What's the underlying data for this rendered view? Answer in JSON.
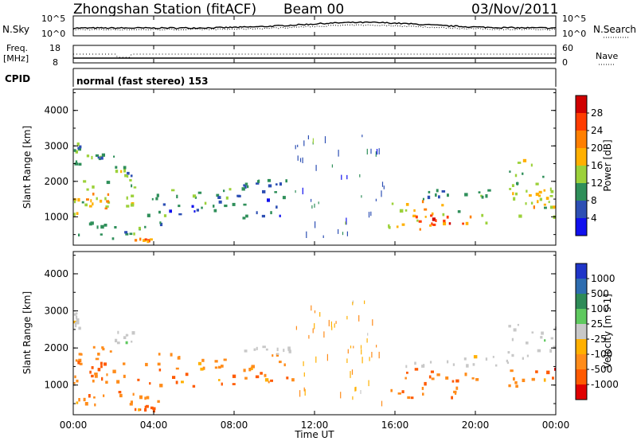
{
  "header": {
    "station": "Zhongshan Station (fitACF)",
    "beam": "Beam 00",
    "date": "03/Nov/2011"
  },
  "status_panels": {
    "nsky_label": "N.Sky",
    "nsky_ticks": [
      "10^5",
      "10^0"
    ],
    "nsearch_label": "N.Search",
    "nsearch_ticks": [
      "10^5",
      "10^0"
    ],
    "freq_label": "Freq.",
    "freq_unit": "[MHz]",
    "freq_ticks": [
      "18",
      "8"
    ],
    "nave_label": "Nave",
    "nave_ticks": [
      "60",
      "0"
    ],
    "cpid_label": "CPID",
    "cpid_value": "normal (fast stereo) 153"
  },
  "x_axis": {
    "label": "Time UT",
    "ticks": [
      "00:00",
      "04:00",
      "08:00",
      "12:00",
      "16:00",
      "20:00",
      "00:00"
    ]
  },
  "chart_data": [
    {
      "type": "heatmap",
      "panel": "power",
      "ylabel": "Slant Range [km]",
      "yticks": [
        1000,
        2000,
        3000,
        4000
      ],
      "ylim": [
        200,
        4600
      ],
      "xlim": [
        0,
        24
      ],
      "colorbar_label": "Power [dB]",
      "colorbar_ticks": [
        "28",
        "24",
        "20",
        "16",
        "12",
        "8",
        "4"
      ],
      "colorbar_colors": [
        "#d00000",
        "#ff3c00",
        "#ff7f00",
        "#ffb000",
        "#9cd13a",
        "#2f8f5a",
        "#2d4fb4",
        "#1010ee"
      ],
      "regions": [
        {
          "t0": 0.0,
          "t1": 3.0,
          "r0": 1000,
          "r1": 2000,
          "level": 12
        },
        {
          "t0": 0.0,
          "t1": 2.0,
          "r0": 1200,
          "r1": 1600,
          "level": 18
        },
        {
          "t0": 0.0,
          "t1": 0.3,
          "r0": 2400,
          "r1": 3000,
          "level": 8
        },
        {
          "t0": 0.5,
          "t1": 2.0,
          "r0": 2600,
          "r1": 2700,
          "level": 8
        },
        {
          "t0": 2.0,
          "t1": 3.0,
          "r0": 2100,
          "r1": 2400,
          "level": 10
        },
        {
          "t0": 3.0,
          "t1": 10.5,
          "r0": 1400,
          "r1": 1800,
          "level": 6
        },
        {
          "t0": 3.0,
          "t1": 11.0,
          "r0": 900,
          "r1": 1400,
          "level": 6
        },
        {
          "t0": 8.0,
          "t1": 11.0,
          "r0": 1800,
          "r1": 2000,
          "level": 6
        },
        {
          "t0": 3.0,
          "t1": 4.0,
          "r0": 250,
          "r1": 400,
          "level": 20
        },
        {
          "t0": 0.0,
          "t1": 4.5,
          "r0": 300,
          "r1": 800,
          "level": 8
        },
        {
          "t0": 15.5,
          "t1": 20.5,
          "r0": 600,
          "r1": 1400,
          "level": 14
        },
        {
          "t0": 17.0,
          "t1": 19.5,
          "r0": 650,
          "r1": 1000,
          "level": 24
        },
        {
          "t0": 16.5,
          "t1": 21.0,
          "r0": 1450,
          "r1": 1750,
          "level": 8
        },
        {
          "t0": 21.5,
          "t1": 24.0,
          "r0": 900,
          "r1": 2600,
          "level": 12
        },
        {
          "t0": 22.5,
          "t1": 24.0,
          "r0": 1200,
          "r1": 1800,
          "level": 16
        },
        {
          "t0": 11.0,
          "t1": 15.5,
          "r0": 400,
          "r1": 3300,
          "level": 5
        }
      ]
    },
    {
      "type": "heatmap",
      "panel": "velocity",
      "ylabel": "Slant Range [km]",
      "yticks": [
        1000,
        2000,
        3000,
        4000
      ],
      "ylim": [
        200,
        4600
      ],
      "xlim": [
        0,
        24
      ],
      "colorbar_label": "Velocity [m s-1]",
      "colorbar_ticks": [
        "1000",
        "500",
        "100",
        "25",
        "-25",
        "-100",
        "-500",
        "-1000"
      ],
      "colorbar_colors": [
        "#1f35c8",
        "#2e6db0",
        "#2e8b57",
        "#5fc95f",
        "#c8c8c8",
        "#ffb000",
        "#ff8c1a",
        "#ff5a00",
        "#e00000"
      ],
      "regions": [
        {
          "t0": 0.0,
          "t1": 3.0,
          "r0": 1000,
          "r1": 2000,
          "level": -300
        },
        {
          "t0": 0.0,
          "t1": 2.0,
          "r0": 1200,
          "r1": 1600,
          "level": -500
        },
        {
          "t0": 0.0,
          "t1": 0.3,
          "r0": 2400,
          "r1": 3000,
          "level": 0
        },
        {
          "t0": 2.0,
          "t1": 3.0,
          "r0": 2100,
          "r1": 2400,
          "level": 0
        },
        {
          "t0": 3.0,
          "t1": 10.5,
          "r0": 1400,
          "r1": 1800,
          "level": -300
        },
        {
          "t0": 3.0,
          "t1": 11.0,
          "r0": 900,
          "r1": 1400,
          "level": -500
        },
        {
          "t0": 8.0,
          "t1": 11.0,
          "r0": 1800,
          "r1": 2000,
          "level": 0
        },
        {
          "t0": 3.0,
          "t1": 4.0,
          "r0": 250,
          "r1": 400,
          "level": -500
        },
        {
          "t0": 0.0,
          "t1": 4.5,
          "r0": 300,
          "r1": 800,
          "level": -200
        },
        {
          "t0": 15.5,
          "t1": 20.5,
          "r0": 600,
          "r1": 1400,
          "level": -400
        },
        {
          "t0": 16.5,
          "t1": 21.0,
          "r0": 1450,
          "r1": 1750,
          "level": 0
        },
        {
          "t0": 21.5,
          "t1": 24.0,
          "r0": 900,
          "r1": 1400,
          "level": -500
        },
        {
          "t0": 21.5,
          "t1": 24.0,
          "r0": 1500,
          "r1": 2600,
          "level": 0
        },
        {
          "t0": 11.0,
          "t1": 15.5,
          "r0": 400,
          "r1": 3300,
          "level": -100
        }
      ]
    }
  ]
}
